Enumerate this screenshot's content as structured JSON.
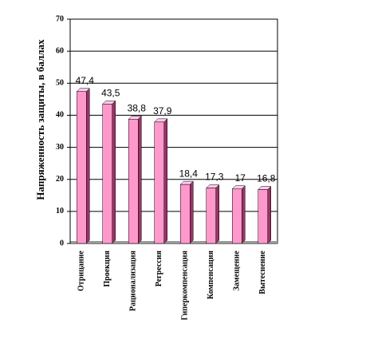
{
  "chart_data": {
    "type": "bar3d",
    "y_label": "Напряженность защиты, в баллах",
    "categories": [
      "Отрицание",
      "Проекция",
      "Рационализация",
      "Регрессия",
      "Гиперкомпенсация",
      "Компенсация",
      "Замещение",
      "Вытеснение"
    ],
    "values": [
      47.4,
      43.5,
      38.8,
      37.9,
      18.4,
      17.3,
      17,
      16.8
    ],
    "value_labels": [
      "47,4",
      "43,5",
      "38,8",
      "37,9",
      "18,4",
      "17,3",
      "17",
      "16,8"
    ],
    "color": "#ff99cc",
    "ylim": [
      0,
      70
    ],
    "yticks": [
      0,
      10,
      20,
      30,
      40,
      50,
      60,
      70
    ],
    "grid": true
  }
}
